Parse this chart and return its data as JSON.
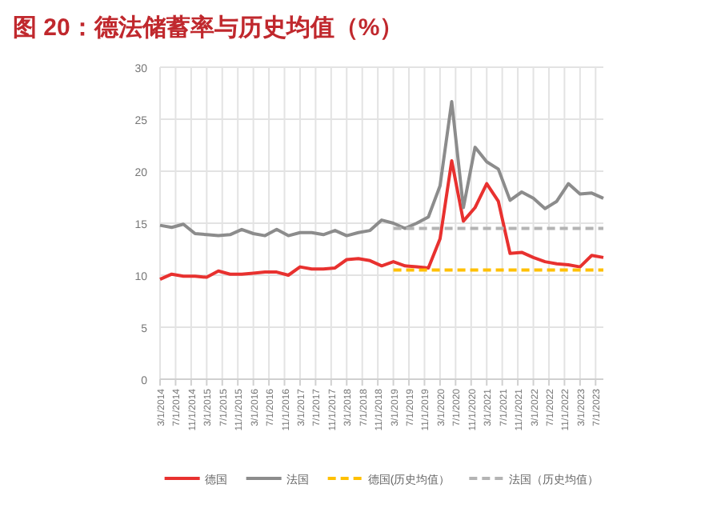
{
  "chart_data": {
    "type": "line",
    "title": "图 20：德法储蓄率与历史均值（%）",
    "x": [
      "2014-03",
      "2014-06",
      "2014-09",
      "2014-12",
      "2015-03",
      "2015-06",
      "2015-09",
      "2015-12",
      "2016-03",
      "2016-06",
      "2016-09",
      "2016-12",
      "2017-03",
      "2017-06",
      "2017-09",
      "2017-12",
      "2018-03",
      "2018-06",
      "2018-09",
      "2018-12",
      "2019-03",
      "2019-06",
      "2019-09",
      "2019-12",
      "2020-03",
      "2020-06",
      "2020-09",
      "2020-12",
      "2021-03",
      "2021-06",
      "2021-09",
      "2021-12",
      "2022-03",
      "2022-06",
      "2022-09",
      "2022-12",
      "2023-03",
      "2023-06",
      "2023-09"
    ],
    "series": [
      {
        "name": "德国",
        "color": "#e8312f",
        "values": [
          9.6,
          10.1,
          9.9,
          9.9,
          9.8,
          10.4,
          10.1,
          10.1,
          10.2,
          10.3,
          10.3,
          10.0,
          10.8,
          10.6,
          10.6,
          10.7,
          11.5,
          11.6,
          11.4,
          10.9,
          11.3,
          10.9,
          10.8,
          10.7,
          13.5,
          21.0,
          15.2,
          16.5,
          18.8,
          17.1,
          12.1,
          12.2,
          11.7,
          11.3,
          11.1,
          11.0,
          10.8,
          11.9,
          11.7
        ]
      },
      {
        "name": "法国",
        "color": "#8c8c8c",
        "values": [
          14.8,
          14.6,
          14.9,
          14.0,
          13.9,
          13.8,
          13.9,
          14.4,
          14.0,
          13.8,
          14.4,
          13.8,
          14.1,
          14.1,
          13.9,
          14.3,
          13.8,
          14.1,
          14.3,
          15.3,
          15.0,
          14.5,
          15.0,
          15.6,
          18.6,
          26.7,
          16.5,
          22.3,
          20.9,
          20.2,
          17.2,
          18.0,
          17.4,
          16.4,
          17.1,
          18.8,
          17.8,
          17.9,
          17.4
        ]
      },
      {
        "name": "德国(历史均值）",
        "color": "#ffc000",
        "line_style": "dashed",
        "x": [
          "2019-03",
          "2023-09"
        ],
        "values": [
          10.5,
          10.5
        ]
      },
      {
        "name": "法国（历史均值）",
        "color": "#b4b4b4",
        "line_style": "dashed",
        "x": [
          "2019-03",
          "2023-09"
        ],
        "values": [
          14.5,
          14.5
        ]
      }
    ],
    "xlim": [
      "2014-03",
      "2023-09"
    ],
    "xticks": [
      {
        "value": "2014-03",
        "label": "3/1/2014"
      },
      {
        "value": "2014-07",
        "label": "7/1/2014"
      },
      {
        "value": "2014-11",
        "label": "11/1/2014"
      },
      {
        "value": "2015-03",
        "label": "3/1/2015"
      },
      {
        "value": "2015-07",
        "label": "7/1/2015"
      },
      {
        "value": "2015-11",
        "label": "11/1/2015"
      },
      {
        "value": "2016-03",
        "label": "3/1/2016"
      },
      {
        "value": "2016-07",
        "label": "7/1/2016"
      },
      {
        "value": "2016-11",
        "label": "11/1/2016"
      },
      {
        "value": "2017-03",
        "label": "3/1/2017"
      },
      {
        "value": "2017-07",
        "label": "7/1/2017"
      },
      {
        "value": "2017-11",
        "label": "11/1/2017"
      },
      {
        "value": "2018-03",
        "label": "3/1/2018"
      },
      {
        "value": "2018-07",
        "label": "7/1/2018"
      },
      {
        "value": "2018-11",
        "label": "11/1/2018"
      },
      {
        "value": "2019-03",
        "label": "3/1/2019"
      },
      {
        "value": "2019-07",
        "label": "7/1/2019"
      },
      {
        "value": "2019-11",
        "label": "11/1/2019"
      },
      {
        "value": "2020-03",
        "label": "3/1/2020"
      },
      {
        "value": "2020-07",
        "label": "7/1/2020"
      },
      {
        "value": "2020-11",
        "label": "11/1/2020"
      },
      {
        "value": "2021-03",
        "label": "3/1/2021"
      },
      {
        "value": "2021-07",
        "label": "7/1/2021"
      },
      {
        "value": "2021-11",
        "label": "11/1/2021"
      },
      {
        "value": "2022-03",
        "label": "3/1/2022"
      },
      {
        "value": "2022-07",
        "label": "7/1/2022"
      },
      {
        "value": "2022-11",
        "label": "11/1/2022"
      },
      {
        "value": "2023-03",
        "label": "3/1/2023"
      },
      {
        "value": "2023-07",
        "label": "7/1/2023"
      }
    ],
    "ylim": [
      0,
      30
    ],
    "yticks": [
      0,
      5,
      10,
      15,
      20,
      25,
      30
    ],
    "grid": true,
    "legend": "bottom",
    "line_style": "solid"
  }
}
